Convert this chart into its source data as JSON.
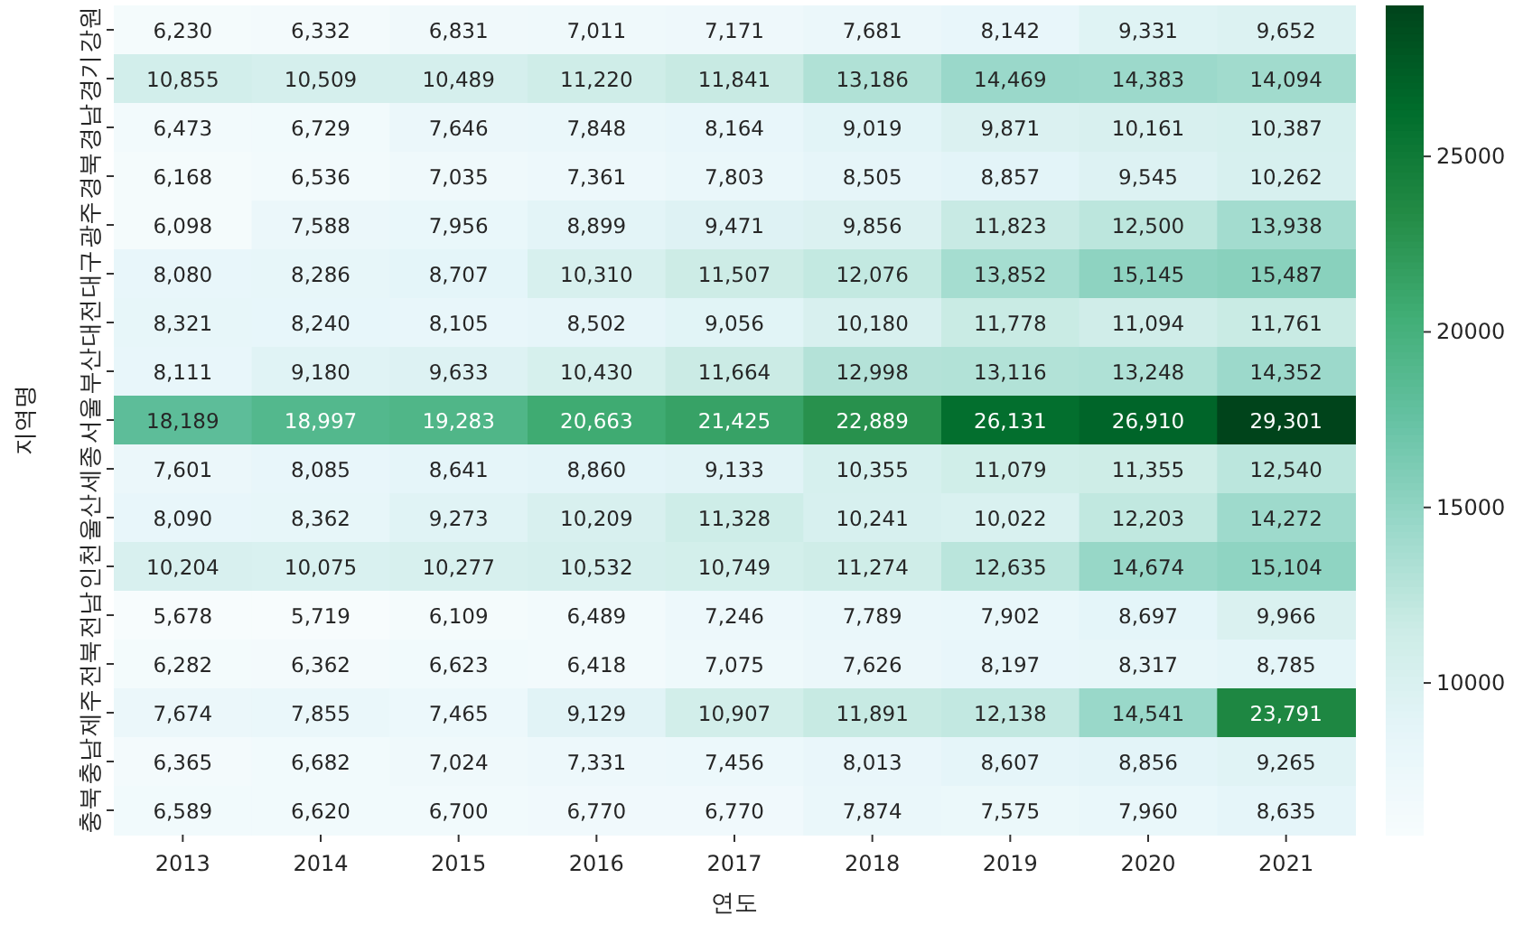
{
  "chart_data": {
    "type": "heatmap",
    "xlabel": "연도",
    "ylabel": "지역명",
    "categories": [
      "2013",
      "2014",
      "2015",
      "2016",
      "2017",
      "2018",
      "2019",
      "2020",
      "2021"
    ],
    "y_categories": [
      "강원",
      "경기",
      "경남",
      "경북",
      "광주",
      "대구",
      "대전",
      "부산",
      "서울",
      "세종",
      "울산",
      "인천",
      "전남",
      "전북",
      "제주",
      "충남",
      "충북"
    ],
    "cells": [
      [
        6230,
        6332,
        6831,
        7011,
        7171,
        7681,
        8142,
        9331,
        9652
      ],
      [
        10855,
        10509,
        10489,
        11220,
        11841,
        13186,
        14469,
        14383,
        14094
      ],
      [
        6473,
        6729,
        7646,
        7848,
        8164,
        9019,
        9871,
        10161,
        10387
      ],
      [
        6168,
        6536,
        7035,
        7361,
        7803,
        8505,
        8857,
        9545,
        10262
      ],
      [
        6098,
        7588,
        7956,
        8899,
        9471,
        9856,
        11823,
        12500,
        13938
      ],
      [
        8080,
        8286,
        8707,
        10310,
        11507,
        12076,
        13852,
        15145,
        15487
      ],
      [
        8321,
        8240,
        8105,
        8502,
        9056,
        10180,
        11778,
        11094,
        11761
      ],
      [
        8111,
        9180,
        9633,
        10430,
        11664,
        12998,
        13116,
        13248,
        14352
      ],
      [
        18189,
        18997,
        19283,
        20663,
        21425,
        22889,
        26131,
        26910,
        29301
      ],
      [
        7601,
        8085,
        8641,
        8860,
        9133,
        10355,
        11079,
        11355,
        12540
      ],
      [
        8090,
        8362,
        9273,
        10209,
        11328,
        10241,
        10022,
        12203,
        14272
      ],
      [
        10204,
        10075,
        10277,
        10532,
        10749,
        11274,
        12635,
        14674,
        15104
      ],
      [
        5678,
        5719,
        6109,
        6489,
        7246,
        7789,
        7902,
        8697,
        9966
      ],
      [
        6282,
        6362,
        6623,
        6418,
        7075,
        7626,
        8197,
        8317,
        8785
      ],
      [
        7674,
        7855,
        7465,
        9129,
        10907,
        11891,
        12138,
        14541,
        23791
      ],
      [
        6365,
        6682,
        7024,
        7331,
        7456,
        8013,
        8607,
        8856,
        9265
      ],
      [
        6589,
        6620,
        6700,
        6770,
        6770,
        7874,
        7575,
        7960,
        8635
      ]
    ],
    "cell_labels": [
      [
        "6,230",
        "6,332",
        "6,831",
        "7,011",
        "7,171",
        "7,681",
        "8,142",
        "9,331",
        "9,652"
      ],
      [
        "10,855",
        "10,509",
        "10,489",
        "11,220",
        "11,841",
        "13,186",
        "14,469",
        "14,383",
        "14,094"
      ],
      [
        "6,473",
        "6,729",
        "7,646",
        "7,848",
        "8,164",
        "9,019",
        "9,871",
        "10,161",
        "10,387"
      ],
      [
        "6,168",
        "6,536",
        "7,035",
        "7,361",
        "7,803",
        "8,505",
        "8,857",
        "9,545",
        "10,262"
      ],
      [
        "6,098",
        "7,588",
        "7,956",
        "8,899",
        "9,471",
        "9,856",
        "11,823",
        "12,500",
        "13,938"
      ],
      [
        "8,080",
        "8,286",
        "8,707",
        "10,310",
        "11,507",
        "12,076",
        "13,852",
        "15,145",
        "15,487"
      ],
      [
        "8,321",
        "8,240",
        "8,105",
        "8,502",
        "9,056",
        "10,180",
        "11,778",
        "11,094",
        "11,761"
      ],
      [
        "8,111",
        "9,180",
        "9,633",
        "10,430",
        "11,664",
        "12,998",
        "13,116",
        "13,248",
        "14,352"
      ],
      [
        "18,189",
        "18,997",
        "19,283",
        "20,663",
        "21,425",
        "22,889",
        "26,131",
        "26,910",
        "29,301"
      ],
      [
        "7,601",
        "8,085",
        "8,641",
        "8,860",
        "9,133",
        "10,355",
        "11,079",
        "11,355",
        "12,540"
      ],
      [
        "8,090",
        "8,362",
        "9,273",
        "10,209",
        "11,328",
        "10,241",
        "10,022",
        "12,203",
        "14,272"
      ],
      [
        "10,204",
        "10,075",
        "10,277",
        "10,532",
        "10,749",
        "11,274",
        "12,635",
        "14,674",
        "15,104"
      ],
      [
        "5,678",
        "5,719",
        "6,109",
        "6,489",
        "7,246",
        "7,789",
        "7,902",
        "8,697",
        "9,966"
      ],
      [
        "6,282",
        "6,362",
        "6,623",
        "6,418",
        "7,075",
        "7,626",
        "8,197",
        "8,317",
        "8,785"
      ],
      [
        "7,674",
        "7,855",
        "7,465",
        "9,129",
        "10,907",
        "11,891",
        "12,138",
        "14,541",
        "23,791"
      ],
      [
        "6,365",
        "6,682",
        "7,024",
        "7,331",
        "7,456",
        "8,013",
        "8,607",
        "8,856",
        "9,265"
      ],
      [
        "6,589",
        "6,620",
        "6,700",
        "6,770",
        "6,770",
        "7,874",
        "7,575",
        "7,960",
        "8,635"
      ]
    ],
    "clim": [
      5678,
      29301
    ],
    "cticks": [
      10000,
      15000,
      20000,
      25000
    ]
  }
}
